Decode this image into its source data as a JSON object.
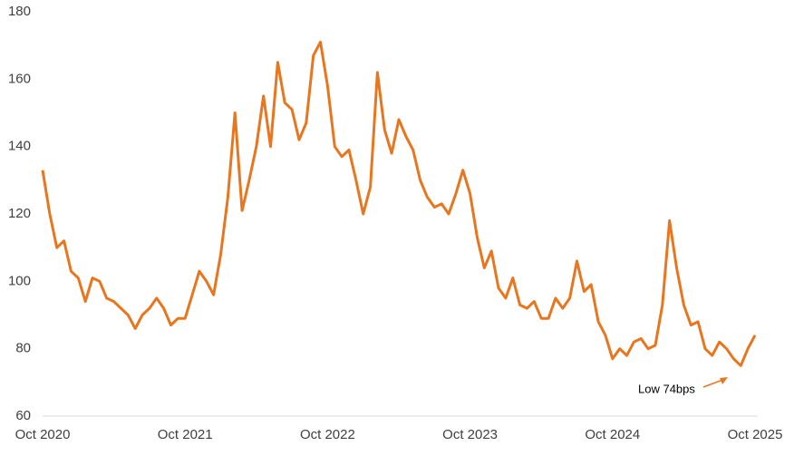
{
  "chart_data": {
    "type": "line",
    "categories": [
      "Oct 2020",
      null,
      null,
      null,
      null,
      null,
      null,
      null,
      null,
      null,
      null,
      null,
      null,
      null,
      null,
      null,
      null,
      null,
      null,
      null,
      "Oct 2021",
      null,
      null,
      null,
      null,
      null,
      null,
      null,
      null,
      null,
      null,
      null,
      null,
      null,
      null,
      null,
      null,
      null,
      null,
      null,
      "Oct 2022",
      null,
      null,
      null,
      null,
      null,
      null,
      null,
      null,
      null,
      null,
      null,
      null,
      null,
      null,
      null,
      null,
      null,
      null,
      null,
      "Oct 2023",
      null,
      null,
      null,
      null,
      null,
      null,
      null,
      null,
      null,
      null,
      null,
      null,
      null,
      null,
      null,
      null,
      null,
      null,
      null,
      "Oct 2024",
      null,
      null,
      null,
      null,
      null,
      null,
      null,
      null,
      null,
      null,
      null,
      null,
      null,
      null,
      null,
      null,
      null,
      null,
      null,
      "Oct 2025"
    ],
    "series": [
      {
        "color": "#e8761e",
        "values": [
          133,
          120,
          110,
          112,
          103,
          101,
          94,
          101,
          100,
          95,
          94,
          92,
          90,
          86,
          90,
          92,
          95,
          92,
          87,
          89,
          89,
          96,
          103,
          100,
          96,
          108,
          125,
          150,
          121,
          130,
          140,
          155,
          140,
          165,
          153,
          151,
          142,
          147,
          167,
          171,
          158,
          140,
          137,
          139,
          130,
          120,
          128,
          162,
          145,
          138,
          148,
          143,
          139,
          130,
          125,
          122,
          123,
          120,
          126,
          133,
          126,
          113,
          104,
          109,
          98,
          95,
          101,
          93,
          92,
          94,
          89,
          89,
          95,
          92,
          95,
          106,
          97,
          99,
          88,
          84,
          77,
          80,
          78,
          82,
          83,
          80,
          81,
          93,
          118,
          104,
          93,
          87,
          88,
          80,
          78,
          82,
          80,
          77,
          75,
          80,
          84
        ]
      }
    ],
    "ylim": [
      60,
      180
    ],
    "yticks": [
      60,
      80,
      100,
      120,
      140,
      160,
      180
    ],
    "annotations": [
      {
        "text": "Low 74bps"
      }
    ]
  }
}
